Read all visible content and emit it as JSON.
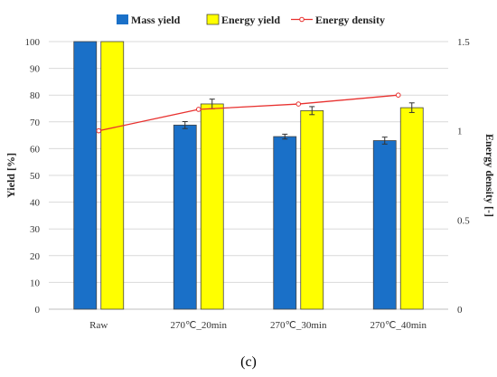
{
  "chart_data": {
    "type": "bar",
    "categories": [
      "Raw",
      "270℃_20min",
      "270℃_30min",
      "270℃_40min"
    ],
    "series": [
      {
        "name": "Mass yield",
        "type": "bar",
        "axis": "left",
        "values": [
          100,
          68.8,
          64.5,
          63.0
        ],
        "errors": [
          0,
          1.3,
          0.9,
          1.3
        ],
        "color": "#1a70c8"
      },
      {
        "name": "Energy yield",
        "type": "bar",
        "axis": "left",
        "values": [
          100,
          76.7,
          74.2,
          75.3
        ],
        "errors": [
          0,
          1.8,
          1.5,
          1.8
        ],
        "color": "#ffff00"
      },
      {
        "name": "Energy density",
        "type": "line",
        "axis": "right",
        "values": [
          1.0,
          1.12,
          1.15,
          1.2
        ],
        "color": "#e8312f"
      }
    ],
    "ylabel": "Yield [%]",
    "y2label": "Energy density [-]",
    "ylim": [
      0,
      100
    ],
    "yticks": [
      0,
      10,
      20,
      30,
      40,
      50,
      60,
      70,
      80,
      90,
      100
    ],
    "y2lim": [
      0,
      1.5
    ],
    "y2ticks": [
      "0",
      "0.5",
      "1",
      "1.5"
    ],
    "legend_position": "top",
    "grid": true,
    "panel_label": "(c)"
  }
}
